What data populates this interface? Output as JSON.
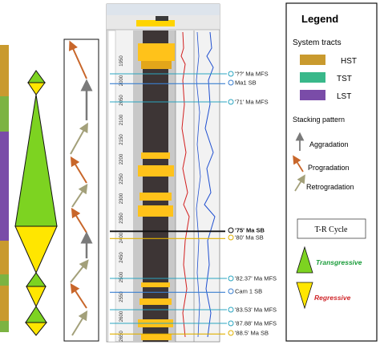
{
  "legend": {
    "title": "Legend",
    "system_tracts_heading": "System tracts",
    "tracts": [
      {
        "label": "HST",
        "color": "#c99a2e"
      },
      {
        "label": "TST",
        "color": "#39b88a"
      },
      {
        "label": "LST",
        "color": "#7a4ca8"
      }
    ],
    "stacking_heading": "Stacking pattern",
    "stacking": [
      {
        "label": "Aggradation",
        "color": "#7a7a7a"
      },
      {
        "label": "Progradation",
        "color": "#c8662a"
      },
      {
        "label": "Retrogradation",
        "color": "#a3a07a"
      }
    ],
    "tr_cycle_label": "T-R Cycle",
    "transgressive_label": "Transgressive",
    "regressive_label": "Regressive",
    "transgressive_color": "#1a9c3a",
    "regressive_color": "#d0282c"
  },
  "surfaces": [
    {
      "label": "'??' Ma MFS",
      "bold": false
    },
    {
      "label": "Ma1 SB",
      "bold": false
    },
    {
      "label": "'71' Ma MFS",
      "bold": false
    },
    {
      "label": "'75' Ma SB",
      "bold": true
    },
    {
      "label": "'80' Ma SB",
      "bold": false
    },
    {
      "label": "'82.37' Ma MFS",
      "bold": false
    },
    {
      "label": "Cam 1 SB",
      "bold": false
    },
    {
      "label": "'83.53' Ma MFS",
      "bold": false
    },
    {
      "label": "'87.88' Ma MFS",
      "bold": false
    },
    {
      "label": "'88.5' Ma SB",
      "bold": false
    }
  ],
  "depth_ticks": [
    "1950",
    "2000",
    "2050",
    "2100",
    "2150",
    "2200",
    "2250",
    "2300",
    "2350",
    "2400",
    "2450",
    "2500",
    "2550",
    "2600",
    "2650"
  ]
}
